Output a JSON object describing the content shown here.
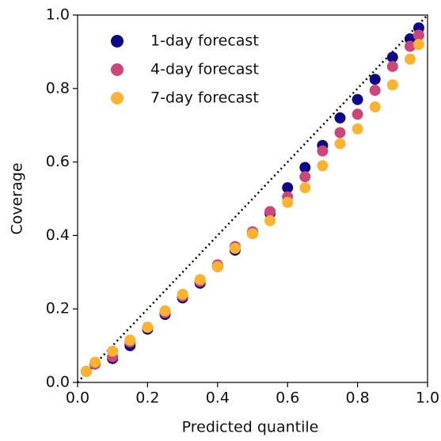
{
  "chart_data": {
    "type": "scatter",
    "xlabel": "Predicted quantile",
    "ylabel": "Coverage",
    "x": [
      0.025,
      0.05,
      0.1,
      0.15,
      0.2,
      0.25,
      0.3,
      0.35,
      0.4,
      0.45,
      0.5,
      0.55,
      0.6,
      0.65,
      0.7,
      0.75,
      0.8,
      0.85,
      0.9,
      0.95,
      0.975
    ],
    "series": [
      {
        "name": "1-day forecast",
        "color": "#0d0887",
        "values": [
          0.03,
          0.05,
          0.065,
          0.1,
          0.145,
          0.185,
          0.23,
          0.27,
          0.315,
          0.36,
          0.405,
          0.46,
          0.53,
          0.585,
          0.645,
          0.72,
          0.77,
          0.825,
          0.885,
          0.935,
          0.965
        ]
      },
      {
        "name": "4-day forecast",
        "color": "#cc4778",
        "values": [
          0.03,
          0.05,
          0.07,
          0.11,
          0.15,
          0.19,
          0.235,
          0.275,
          0.32,
          0.37,
          0.41,
          0.465,
          0.505,
          0.56,
          0.63,
          0.68,
          0.73,
          0.795,
          0.86,
          0.915,
          0.945
        ]
      },
      {
        "name": "7-day forecast",
        "color": "#fdb32f",
        "values": [
          0.03,
          0.055,
          0.085,
          0.115,
          0.15,
          0.195,
          0.24,
          0.28,
          0.315,
          0.365,
          0.405,
          0.44,
          0.49,
          0.53,
          0.59,
          0.65,
          0.69,
          0.75,
          0.81,
          0.88,
          0.92
        ]
      }
    ],
    "xlim": [
      0,
      1
    ],
    "ylim": [
      0,
      1
    ],
    "xticks": [
      {
        "value": 0,
        "label": "0.0"
      },
      0.2,
      0.4,
      0.6,
      0.8,
      {
        "value": 1,
        "label": "1.0"
      }
    ],
    "yticks": [
      {
        "value": 0,
        "label": "0.0"
      },
      0.2,
      0.4,
      0.6,
      0.8,
      {
        "value": 1,
        "label": "1.0"
      }
    ],
    "diagonal": true,
    "legend": "upper left"
  }
}
